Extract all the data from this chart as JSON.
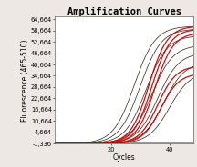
{
  "title": "Amplification Curves",
  "xlabel": "Cycles",
  "ylabel": "Fluorescence (465-510)",
  "xlim": [
    1,
    48
  ],
  "ylim": [
    -1336,
    66000
  ],
  "yticks": [
    -1336,
    4664,
    10664,
    16664,
    22664,
    28664,
    34664,
    40664,
    46664,
    52664,
    58664,
    64664
  ],
  "ytick_labels": [
    "-1,336",
    "4,664",
    "10,664",
    "16,664",
    "22,664",
    "28,664",
    "34,664",
    "40,664",
    "46,664",
    "52,664",
    "58,664",
    "64,664"
  ],
  "xticks": [
    20,
    40
  ],
  "background_color": "#ede8e3",
  "plot_bg_color": "#ffffff",
  "title_fontsize": 7.5,
  "axis_fontsize": 5.5,
  "tick_fontsize": 4.8,
  "dark_curves": [
    [
      28,
      61000,
      0.28
    ],
    [
      30,
      59500,
      0.28
    ],
    [
      32,
      56000,
      0.28
    ],
    [
      34,
      51000,
      0.28
    ],
    [
      36,
      47000,
      0.28
    ],
    [
      38,
      42000,
      0.28
    ],
    [
      40,
      37000,
      0.28
    ]
  ],
  "red_curves": [
    [
      33,
      61000,
      0.32
    ],
    [
      34,
      59500,
      0.32
    ],
    [
      35,
      57500,
      0.32
    ],
    [
      36,
      40000,
      0.32
    ],
    [
      37,
      36000,
      0.32
    ]
  ],
  "dark_color": "#2a1a0a",
  "red_color": "#cc0000",
  "green_color": "#44bb44",
  "green_y": -900
}
